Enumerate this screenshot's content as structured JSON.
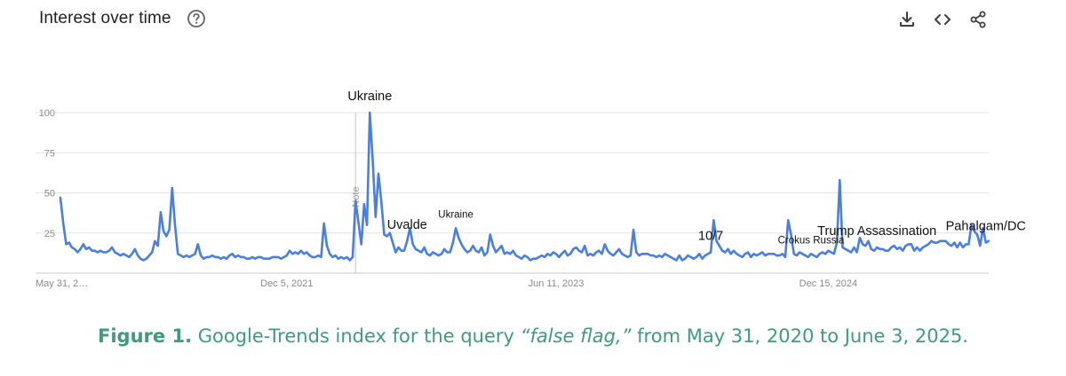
{
  "header": {
    "title": "Interest over time",
    "help_icon": "help-circle-icon",
    "tools": [
      {
        "name": "download-icon"
      },
      {
        "name": "embed-code-icon"
      },
      {
        "name": "share-icon"
      }
    ]
  },
  "colors": {
    "line": "#4a7fe0",
    "grid": "#e3e3e3",
    "axis_text": "#8a8a8a",
    "caption": "#3c9c7c"
  },
  "chart_data": {
    "type": "line",
    "x_start": "May 31, 2020",
    "x_end": "Jun 3, 2025",
    "x_ticks": [
      "May 31, 2…",
      "Dec 5, 2021",
      "Jun 11, 2023",
      "Dec 15, 2024"
    ],
    "y_ticks": [
      "100",
      "75",
      "50",
      "25"
    ],
    "ylim": [
      0,
      100
    ],
    "grid": true,
    "note_marker": "Note",
    "values": [
      47,
      31,
      18,
      19,
      16,
      15,
      13,
      15,
      18,
      15,
      16,
      14,
      14,
      13,
      14,
      13,
      13,
      14,
      16,
      13,
      12,
      11,
      12,
      11,
      10,
      12,
      15,
      11,
      9,
      8,
      9,
      11,
      13,
      20,
      17,
      38,
      26,
      23,
      27,
      53,
      30,
      12,
      11,
      10,
      11,
      10,
      11,
      12,
      18,
      11,
      9,
      10,
      10,
      11,
      10,
      10,
      9,
      10,
      9,
      11,
      12,
      10,
      11,
      10,
      10,
      9,
      9,
      10,
      9,
      10,
      10,
      9,
      9,
      9,
      10,
      10,
      10,
      9,
      10,
      11,
      14,
      12,
      13,
      12,
      14,
      12,
      13,
      11,
      10,
      10,
      11,
      10,
      31,
      17,
      12,
      10,
      11,
      9,
      10,
      9,
      10,
      8,
      10,
      45,
      32,
      18,
      43,
      30,
      100,
      70,
      35,
      62,
      45,
      24,
      23,
      25,
      19,
      13,
      16,
      14,
      14,
      20,
      28,
      18,
      15,
      14,
      13,
      16,
      12,
      11,
      13,
      12,
      11,
      12,
      15,
      13,
      13,
      19,
      28,
      22,
      18,
      15,
      13,
      14,
      17,
      14,
      13,
      16,
      11,
      13,
      24,
      17,
      13,
      15,
      17,
      12,
      13,
      12,
      14,
      11,
      10,
      9,
      11,
      10,
      8,
      9,
      9,
      10,
      11,
      10,
      12,
      11,
      13,
      12,
      10,
      12,
      14,
      11,
      12,
      15,
      16,
      14,
      13,
      17,
      11,
      12,
      11,
      13,
      14,
      12,
      18,
      14,
      12,
      11,
      13,
      15,
      12,
      11,
      10,
      11,
      27,
      13,
      11,
      12,
      12,
      12,
      11,
      11,
      10,
      11,
      10,
      12,
      11,
      10,
      9,
      8,
      11,
      8,
      9,
      11,
      10,
      9,
      10,
      12,
      9,
      11,
      12,
      13,
      33,
      20,
      17,
      14,
      13,
      15,
      12,
      14,
      12,
      11,
      10,
      12,
      13,
      10,
      12,
      11,
      12,
      13,
      11,
      12,
      12,
      12,
      11,
      11,
      12,
      10,
      33,
      24,
      12,
      11,
      13,
      12,
      11,
      10,
      12,
      11,
      10,
      12,
      13,
      12,
      14,
      13,
      12,
      19,
      58,
      16,
      15,
      14,
      13,
      16,
      13,
      22,
      18,
      17,
      20,
      15,
      14,
      16,
      15,
      15,
      14,
      14,
      16,
      17,
      15,
      16,
      14,
      17,
      18,
      18,
      14,
      16,
      14,
      16,
      17,
      18,
      20,
      19,
      19,
      20,
      20,
      20,
      18,
      17,
      19,
      16,
      19,
      16,
      18,
      18,
      30,
      26,
      24,
      17,
      28,
      19,
      20
    ],
    "annotations": [
      {
        "text": "Ukraine",
        "at": 108,
        "size": "large"
      },
      {
        "text": "Uvalde",
        "at": 121,
        "size": "large"
      },
      {
        "text": "Ukraine",
        "at": 138,
        "size": "small"
      },
      {
        "text": "10/7",
        "at": 227,
        "size": "large"
      },
      {
        "text": "Crokus Russia",
        "at": 262,
        "size": "small"
      },
      {
        "text": "Trump Assassination",
        "at": 285,
        "size": "large"
      },
      {
        "text": "Pahalgam/DC",
        "at": 323,
        "size": "large"
      }
    ]
  },
  "caption": {
    "label": "Figure 1.",
    "text_before": " Google-Trends index for the query ",
    "query": "“false flag,”",
    "text_after": " from May 31, 2020 to June 3, 2025."
  }
}
